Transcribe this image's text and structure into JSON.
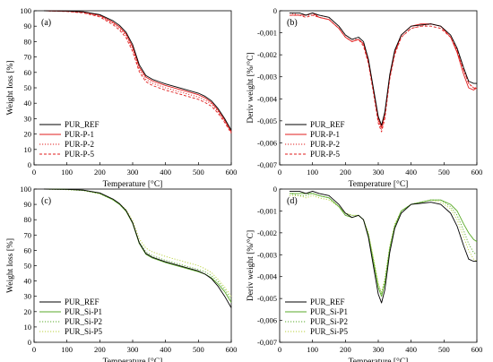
{
  "chart_data": [
    {
      "type": "line",
      "panel_label": "(a)",
      "xlabel": "Temperature [°C]",
      "ylabel": "Weight loss [%]",
      "xlim": [
        0,
        600
      ],
      "ylim": [
        0,
        100
      ],
      "xticks": [
        0,
        100,
        200,
        300,
        400,
        500,
        600
      ],
      "yticks": [
        0,
        10,
        20,
        30,
        40,
        50,
        60,
        70,
        80,
        90,
        100
      ],
      "grid": false,
      "legend_position": "bottom-left",
      "x": [
        30,
        100,
        150,
        200,
        240,
        260,
        280,
        300,
        320,
        340,
        360,
        380,
        400,
        450,
        500,
        520,
        540,
        560,
        580,
        600
      ],
      "series": [
        {
          "name": "PUR_REF",
          "color": "#000000",
          "dash": "solid",
          "values": [
            100,
            99.8,
            99.3,
            97.5,
            93.5,
            90.5,
            86,
            78,
            65,
            58,
            55.5,
            54,
            52.5,
            49.5,
            46.5,
            44.5,
            41.5,
            36.5,
            30,
            22.5
          ]
        },
        {
          "name": "PUR-P-1",
          "color": "#e01c1c",
          "dash": "solid",
          "values": [
            100,
            99.7,
            99.1,
            97,
            92.5,
            89.5,
            85,
            76.5,
            63.5,
            57,
            54.5,
            53,
            51.5,
            48.5,
            45.5,
            43.5,
            40.5,
            35.5,
            29,
            21.5
          ]
        },
        {
          "name": "PUR-P-2",
          "color": "#e01c1c",
          "dash": "dot",
          "values": [
            100,
            99.6,
            98.9,
            96.5,
            92,
            88.5,
            84,
            75,
            62,
            55.5,
            53,
            51.5,
            50,
            47,
            44,
            42,
            39.5,
            34.5,
            28.5,
            21
          ]
        },
        {
          "name": "PUR-P-5",
          "color": "#e01c1c",
          "dash": "dash",
          "values": [
            100,
            99.5,
            98.6,
            96,
            91,
            87.5,
            82.5,
            73.5,
            60.5,
            54,
            51.5,
            50,
            48.5,
            45.5,
            42.5,
            40.5,
            38,
            33.5,
            27.5,
            20.5
          ]
        }
      ]
    },
    {
      "type": "line",
      "panel_label": "(b)",
      "xlabel": "Temperature [°C]",
      "ylabel": "Deriv weight [%/°C]",
      "xlim": [
        0,
        600
      ],
      "ylim": [
        -0.007,
        0
      ],
      "xticks": [
        0,
        100,
        200,
        300,
        400,
        500,
        600
      ],
      "yticks": [
        0,
        -0.001,
        -0.002,
        -0.003,
        -0.004,
        -0.005,
        -0.006,
        -0.007
      ],
      "ytick_labels": [
        "0",
        "-0,001",
        "-0,002",
        "-0,003",
        "-0,004",
        "-0,005",
        "-0,006",
        "-0,007"
      ],
      "grid": false,
      "legend_position": "bottom-left",
      "x": [
        30,
        60,
        80,
        100,
        120,
        150,
        180,
        200,
        220,
        240,
        255,
        270,
        285,
        300,
        310,
        320,
        335,
        350,
        370,
        400,
        430,
        460,
        490,
        520,
        540,
        560,
        575,
        590,
        600
      ],
      "series": [
        {
          "name": "PUR_REF",
          "color": "#000000",
          "dash": "solid",
          "values": [
            -0.0001,
            -0.0001,
            -0.0002,
            -0.0001,
            -0.0002,
            -0.0003,
            -0.0007,
            -0.0011,
            -0.0013,
            -0.0012,
            -0.0014,
            -0.0022,
            -0.0035,
            -0.0048,
            -0.0052,
            -0.0046,
            -0.0029,
            -0.0018,
            -0.0011,
            -0.0007,
            -0.00065,
            -0.0006,
            -0.0007,
            -0.0011,
            -0.0017,
            -0.0026,
            -0.0032,
            -0.0033,
            -0.0033
          ]
        },
        {
          "name": "PUR-P-1",
          "color": "#e01c1c",
          "dash": "solid",
          "values": [
            -0.0002,
            -0.0002,
            -0.0002,
            -0.0001,
            -0.0003,
            -0.0004,
            -0.0008,
            -0.0012,
            -0.0014,
            -0.0013,
            -0.0015,
            -0.0023,
            -0.0036,
            -0.0049,
            -0.0053,
            -0.0047,
            -0.003,
            -0.0019,
            -0.0011,
            -0.0007,
            -0.0006,
            -0.0006,
            -0.0007,
            -0.0012,
            -0.0019,
            -0.0029,
            -0.0035,
            -0.0036,
            -0.0035
          ]
        },
        {
          "name": "PUR-P-2",
          "color": "#e01c1c",
          "dash": "dot",
          "values": [
            -0.0001,
            -0.0002,
            -0.0002,
            -0.0002,
            -0.0002,
            -0.0003,
            -0.0007,
            -0.0011,
            -0.0013,
            -0.0013,
            -0.0015,
            -0.0023,
            -0.0036,
            -0.005,
            -0.0054,
            -0.0048,
            -0.003,
            -0.0019,
            -0.0012,
            -0.0008,
            -0.0007,
            -0.0006,
            -0.0007,
            -0.0011,
            -0.0018,
            -0.0027,
            -0.0033,
            -0.0035,
            -0.0035
          ]
        },
        {
          "name": "PUR-P-5",
          "color": "#e01c1c",
          "dash": "dash",
          "values": [
            -0.0002,
            -0.0002,
            -0.0003,
            -0.0002,
            -0.0003,
            -0.0004,
            -0.0008,
            -0.0012,
            -0.0014,
            -0.0013,
            -0.0016,
            -0.0024,
            -0.0037,
            -0.0051,
            -0.0055,
            -0.0049,
            -0.0031,
            -0.002,
            -0.0012,
            -0.0008,
            -0.0007,
            -0.0007,
            -0.0008,
            -0.0012,
            -0.0018,
            -0.0027,
            -0.0033,
            -0.0035,
            -0.0036
          ]
        }
      ]
    },
    {
      "type": "line",
      "panel_label": "(c)",
      "xlabel": "Temperature [°C]",
      "ylabel": "Weight loss [%]",
      "xlim": [
        0,
        600
      ],
      "ylim": [
        0,
        100
      ],
      "xticks": [
        0,
        100,
        200,
        300,
        400,
        500,
        600
      ],
      "yticks": [
        0,
        10,
        20,
        30,
        40,
        50,
        60,
        70,
        80,
        90,
        100
      ],
      "grid": false,
      "legend_position": "bottom-left",
      "x": [
        30,
        100,
        150,
        200,
        240,
        260,
        280,
        300,
        320,
        340,
        360,
        380,
        400,
        450,
        500,
        520,
        540,
        560,
        580,
        600
      ],
      "series": [
        {
          "name": "PUR_REF",
          "color": "#000000",
          "dash": "solid",
          "values": [
            100,
            99.8,
            99.3,
            97.5,
            93.5,
            90.5,
            86,
            78,
            65,
            58,
            55.5,
            54,
            52.5,
            49.5,
            46.5,
            44.5,
            41.5,
            36.5,
            30,
            22.5
          ]
        },
        {
          "name": "PUR_Si-P1",
          "color": "#5aaa28",
          "dash": "solid",
          "values": [
            100,
            99.8,
            99.2,
            97.2,
            93,
            90,
            85.5,
            77.5,
            64.5,
            57.5,
            55,
            53.5,
            52,
            49,
            46,
            44.5,
            42,
            38,
            33,
            26
          ]
        },
        {
          "name": "PUR_Si-P2",
          "color": "#5aaa28",
          "dash": "dot",
          "values": [
            100,
            99.7,
            99.1,
            97,
            93,
            90,
            85.5,
            78,
            65.5,
            59,
            56.5,
            55,
            53.5,
            50.5,
            47.5,
            46,
            43.5,
            39.5,
            34.5,
            28
          ]
        },
        {
          "name": "PUR_Si-P5",
          "color": "#b8d23c",
          "dash": "dot",
          "values": [
            100,
            99.6,
            99,
            96.8,
            93,
            90.5,
            86.5,
            79.5,
            67.5,
            61.5,
            59,
            57.5,
            56,
            53,
            50,
            48,
            45.5,
            41,
            36,
            30
          ]
        }
      ]
    },
    {
      "type": "line",
      "panel_label": "(d)",
      "xlabel": "Temperature [°C]",
      "ylabel": "Deriv weight [%/°C]",
      "xlim": [
        0,
        600
      ],
      "ylim": [
        -0.007,
        0
      ],
      "xticks": [
        0,
        100,
        200,
        300,
        400,
        500,
        600
      ],
      "yticks": [
        0,
        -0.001,
        -0.002,
        -0.003,
        -0.004,
        -0.005,
        -0.006,
        -0.007
      ],
      "ytick_labels": [
        "0",
        "-0,001",
        "-0,002",
        "-0,003",
        "-0,004",
        "-0,005",
        "-0,006",
        "-0,007"
      ],
      "grid": false,
      "legend_position": "bottom-left",
      "x": [
        30,
        60,
        80,
        100,
        120,
        150,
        180,
        200,
        220,
        240,
        255,
        270,
        285,
        300,
        310,
        320,
        335,
        350,
        370,
        400,
        430,
        460,
        490,
        520,
        540,
        560,
        575,
        590,
        600
      ],
      "series": [
        {
          "name": "PUR_REF",
          "color": "#000000",
          "dash": "solid",
          "values": [
            -0.0001,
            -0.0001,
            -0.0002,
            -0.0001,
            -0.0002,
            -0.0003,
            -0.0007,
            -0.0011,
            -0.0013,
            -0.0012,
            -0.0014,
            -0.0022,
            -0.0035,
            -0.0048,
            -0.0052,
            -0.0046,
            -0.0029,
            -0.0018,
            -0.0011,
            -0.0007,
            -0.00065,
            -0.0006,
            -0.0007,
            -0.0011,
            -0.0017,
            -0.0026,
            -0.0032,
            -0.0033,
            -0.0033
          ]
        },
        {
          "name": "PUR_Si-P1",
          "color": "#5aaa28",
          "dash": "solid",
          "values": [
            -0.0002,
            -0.0002,
            -0.0002,
            -0.0002,
            -0.0003,
            -0.0004,
            -0.0008,
            -0.0012,
            -0.0013,
            -0.0012,
            -0.0014,
            -0.0021,
            -0.0033,
            -0.0045,
            -0.0049,
            -0.0043,
            -0.0027,
            -0.0017,
            -0.001,
            -0.0007,
            -0.0006,
            -0.0005,
            -0.0005,
            -0.0007,
            -0.001,
            -0.0016,
            -0.002,
            -0.0023,
            -0.0024
          ]
        },
        {
          "name": "PUR_Si-P2",
          "color": "#5aaa28",
          "dash": "dot",
          "values": [
            -0.0002,
            -0.0003,
            -0.0003,
            -0.0002,
            -0.0003,
            -0.0004,
            -0.0008,
            -0.0011,
            -0.0012,
            -0.0012,
            -0.0014,
            -0.0021,
            -0.0032,
            -0.0044,
            -0.0048,
            -0.0042,
            -0.0027,
            -0.0017,
            -0.001,
            -0.0007,
            -0.0006,
            -0.0005,
            -0.0005,
            -0.0008,
            -0.0012,
            -0.0019,
            -0.0025,
            -0.0029,
            -0.003
          ]
        },
        {
          "name": "PUR_Si-P5",
          "color": "#b8d23c",
          "dash": "dot",
          "values": [
            -0.0003,
            -0.0003,
            -0.0004,
            -0.0003,
            -0.0004,
            -0.0005,
            -0.0008,
            -0.0011,
            -0.0012,
            -0.0012,
            -0.0014,
            -0.002,
            -0.0031,
            -0.0043,
            -0.0047,
            -0.0041,
            -0.0026,
            -0.0016,
            -0.001,
            -0.0007,
            -0.0006,
            -0.0005,
            -0.0006,
            -0.0009,
            -0.0014,
            -0.0022,
            -0.0028,
            -0.0032,
            -0.0033
          ]
        }
      ]
    }
  ]
}
